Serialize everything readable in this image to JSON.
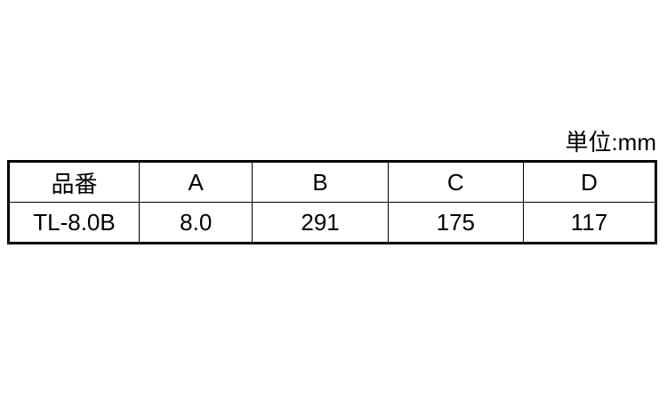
{
  "unit": "単位:mm",
  "headers": [
    "品番",
    "A",
    "B",
    "C",
    "D"
  ],
  "rows": [
    [
      "TL-8.0B",
      "8.0",
      "291",
      "175",
      "117"
    ]
  ]
}
